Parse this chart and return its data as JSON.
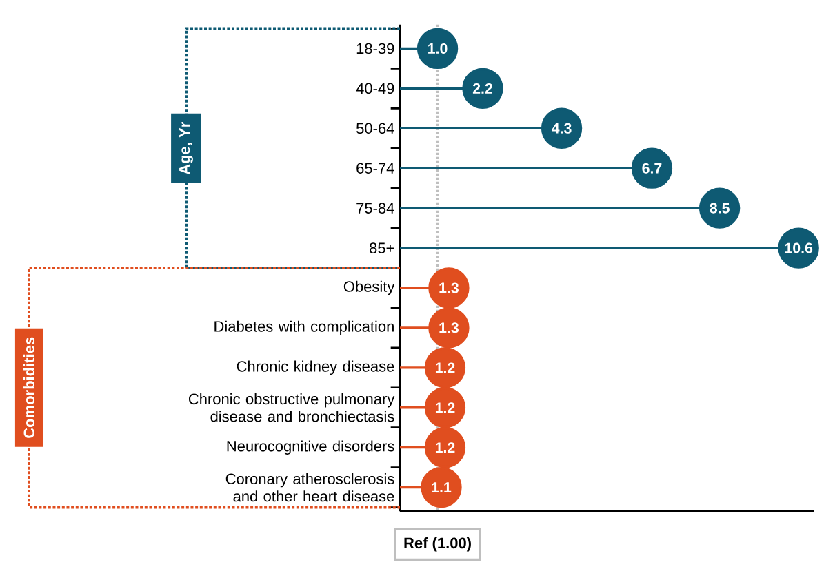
{
  "chart_data": {
    "type": "lollipop",
    "orientation": "horizontal",
    "categories": [
      "18-39",
      "40-49",
      "50-64",
      "65-74",
      "75-84",
      "85+",
      "Obesity",
      "Diabetes with complication",
      "Chronic kidney disease",
      "Chronic obstructive pulmonary disease and bronchiectasis",
      "Neurocognitive disorders",
      "Coronary atherosclerosis and other heart disease"
    ],
    "series": [
      {
        "color": "#0e5a73",
        "values": [
          1.0,
          2.2,
          4.3,
          6.7,
          8.5,
          10.6,
          null,
          null,
          null,
          null,
          null,
          null
        ],
        "value_labels": [
          "1.0",
          "2.2",
          "4.3",
          "6.7",
          "8.5",
          "10.6",
          null,
          null,
          null,
          null,
          null,
          null
        ]
      },
      {
        "color": "#e04e1f",
        "values": [
          null,
          null,
          null,
          null,
          null,
          null,
          1.3,
          1.3,
          1.2,
          1.2,
          1.2,
          1.1
        ],
        "value_labels": [
          null,
          null,
          null,
          null,
          null,
          null,
          "1.3",
          "1.3",
          "1.2",
          "1.2",
          "1.2",
          "1.1"
        ]
      }
    ],
    "xlim": [
      0,
      11
    ],
    "tick_labels": "y",
    "marker": "circle",
    "ref_lines": [
      {
        "axis": "x",
        "value": 1,
        "label": "Ref (1.00)",
        "color": "#bfbfbf",
        "line_style": "dotted"
      }
    ],
    "annotations": [
      "Age, Yr",
      "Comorbidities"
    ]
  }
}
